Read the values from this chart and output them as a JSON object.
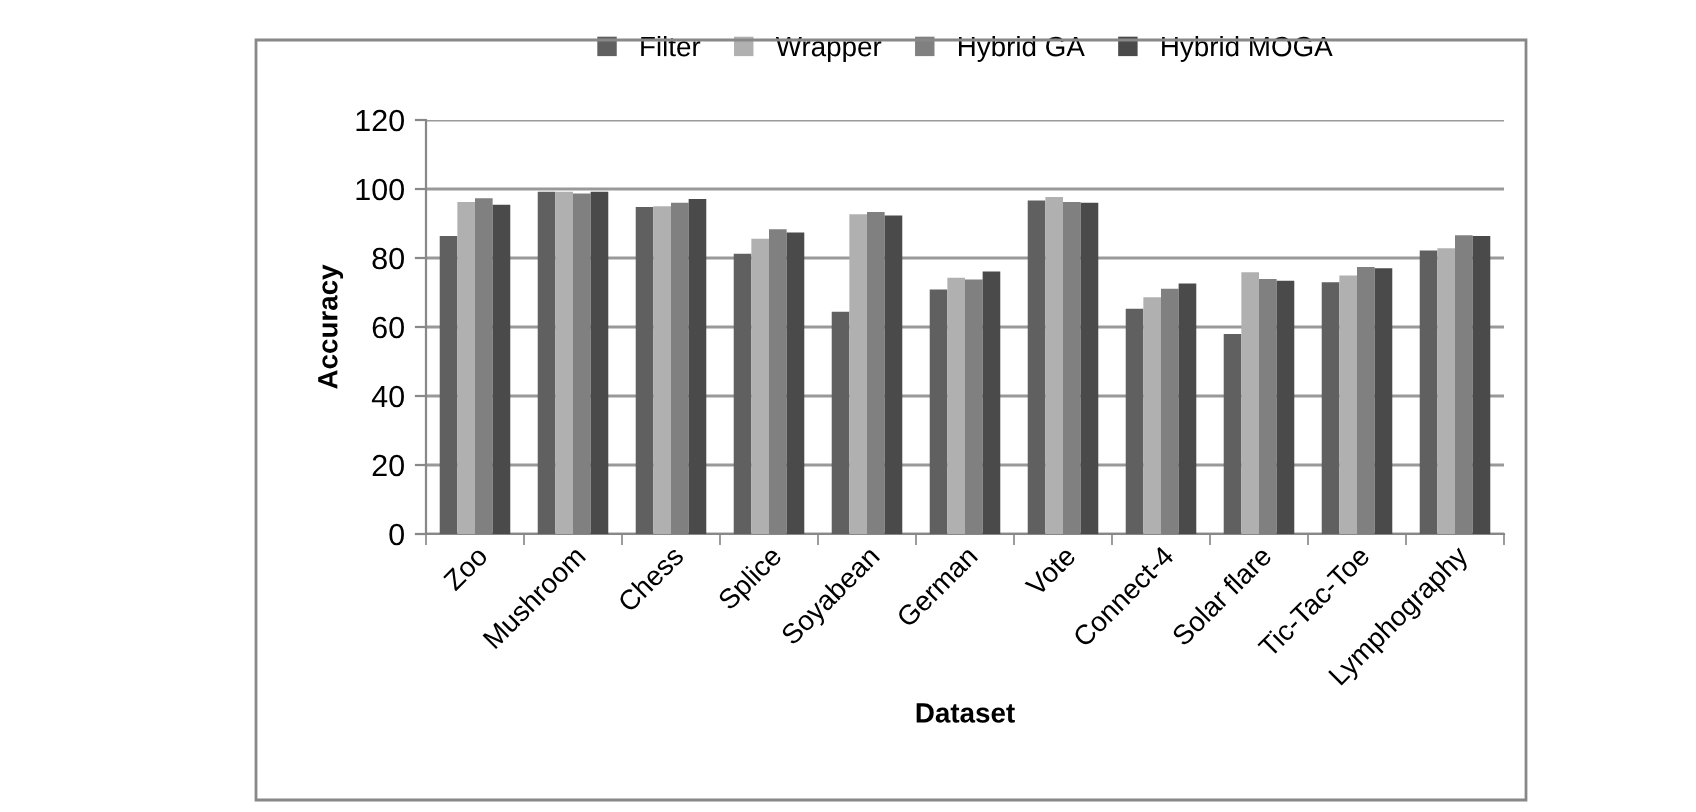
{
  "chart_data": {
    "type": "bar",
    "xlabel": "Dataset",
    "ylabel": "Accuracy",
    "categories": [
      "Zoo",
      "Mushroom",
      "Chess",
      "Splice",
      "Soyabean",
      "German",
      "Vote",
      "Connect-4",
      "Solar flare",
      "Tic-Tac-Toe",
      "Lymphography"
    ],
    "series": [
      {
        "name": "Filter",
        "color": "#606060",
        "values": [
          86.4,
          99.2,
          94.8,
          81.2,
          64.4,
          70.9,
          96.7,
          65.3,
          58.0,
          73.0,
          82.2
        ]
      },
      {
        "name": "Wrapper",
        "color": "#b0b0b0",
        "values": [
          96.2,
          99.2,
          95.0,
          85.6,
          92.7,
          74.3,
          97.7,
          68.6,
          75.9,
          74.9,
          82.8
        ]
      },
      {
        "name": "Hybrid GA",
        "color": "#808080",
        "values": [
          97.3,
          98.7,
          96.0,
          88.3,
          93.3,
          73.8,
          96.2,
          71.1,
          73.9,
          77.4,
          86.6
        ]
      },
      {
        "name": "Hybrid MOGA",
        "color": "#4a4a4a",
        "values": [
          95.4,
          99.2,
          97.1,
          87.4,
          92.3,
          76.1,
          96.0,
          72.6,
          73.4,
          77.0,
          86.4
        ]
      }
    ],
    "ylim": [
      0,
      120
    ],
    "yticks": [
      0,
      20,
      40,
      60,
      80,
      100,
      120
    ],
    "grid": "y",
    "legend": "top"
  }
}
